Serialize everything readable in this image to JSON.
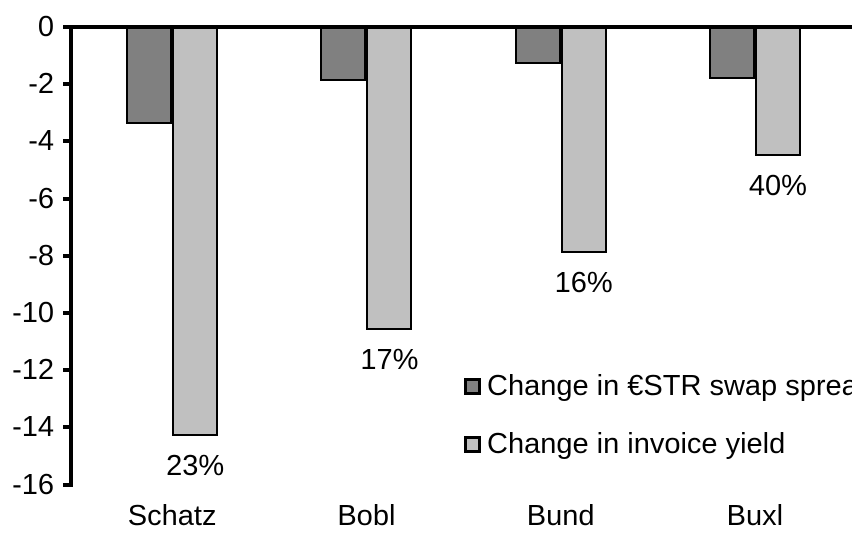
{
  "chart_data": {
    "type": "bar",
    "orientation": "vertical-negative",
    "title": "",
    "xlabel": "",
    "ylabel": "",
    "categories": [
      "Schatz",
      "Bobl",
      "Bund",
      "Buxl"
    ],
    "series": [
      {
        "name": "Change in €STR swap spread",
        "color": "#808080",
        "values": [
          -3.3,
          -1.8,
          -1.2,
          -1.7
        ]
      },
      {
        "name": "Change in invoice yield",
        "color": "#c0c0c0",
        "values": [
          -14.2,
          -10.5,
          -7.8,
          -4.4
        ],
        "data_labels": [
          "23%",
          "17%",
          "16%",
          "40%"
        ]
      }
    ],
    "ylim": [
      -16,
      0
    ],
    "ytick_labels": [
      "0",
      "-2",
      "-4",
      "-6",
      "-8",
      "-10",
      "-12",
      "-14",
      "-16"
    ],
    "grid": false,
    "legend_position": "inside-right",
    "bar_border_color": "#000000",
    "axis_color": "#000000",
    "background_color": "#ffffff"
  }
}
